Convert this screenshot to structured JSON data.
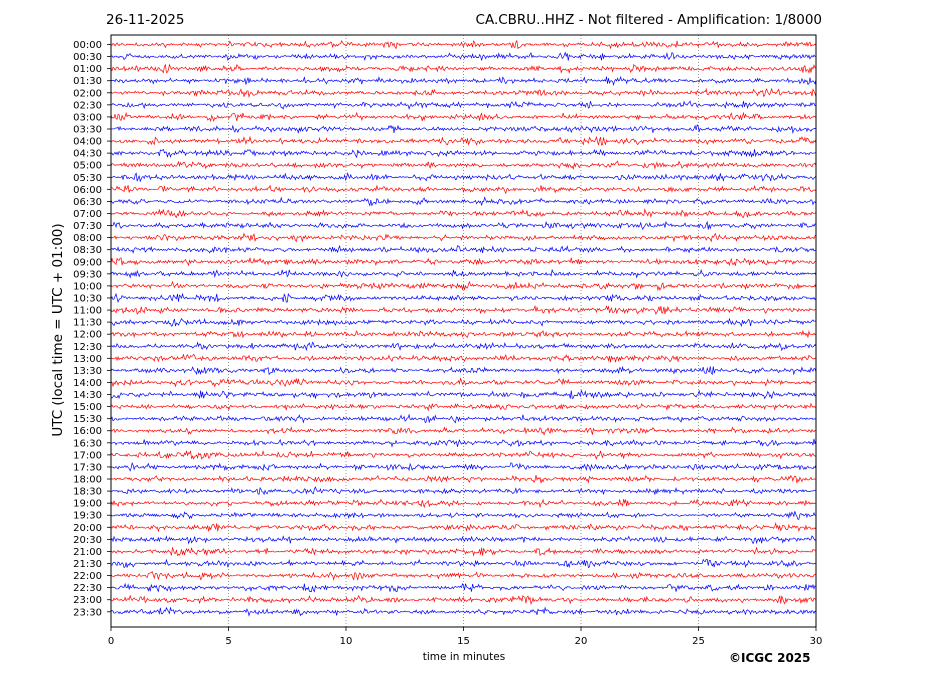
{
  "header": {
    "date": "26-11-2025",
    "title": "CA.CBRU..HHZ - Not filtered - Amplification: 1/8000"
  },
  "footer": {
    "copyright": "©ICGC 2025"
  },
  "colors": {
    "trace_even": "#ff0000",
    "trace_odd": "#0000ff",
    "grid": "#555555",
    "frame": "#000000"
  },
  "chart_data": {
    "type": "line",
    "title": "CA.CBRU..HHZ - Not filtered - Amplification: 1/8000",
    "xlabel": "time in minutes",
    "ylabel": "UTC (local time = UTC + 01:00)",
    "xlim": [
      0,
      30
    ],
    "x_ticks": [
      0,
      5,
      10,
      15,
      20,
      25,
      30
    ],
    "grid": "vertical dotted lines at x ticks",
    "rows": [
      "00:00",
      "00:30",
      "01:00",
      "01:30",
      "02:00",
      "02:30",
      "03:00",
      "03:30",
      "04:00",
      "04:30",
      "05:00",
      "05:30",
      "06:00",
      "06:30",
      "07:00",
      "07:30",
      "08:00",
      "08:30",
      "09:00",
      "09:30",
      "10:00",
      "10:30",
      "11:00",
      "11:30",
      "12:00",
      "12:30",
      "13:00",
      "13:30",
      "14:00",
      "14:30",
      "15:00",
      "15:30",
      "16:00",
      "16:30",
      "17:00",
      "17:30",
      "18:00",
      "18:30",
      "19:00",
      "19:30",
      "20:00",
      "20:30",
      "21:00",
      "21:30",
      "22:00",
      "22:30",
      "23:00",
      "23:30"
    ],
    "series_colors": [
      "red",
      "blue"
    ],
    "trace_note_values": "continuous low-amplitude seismic noise on every row"
  }
}
